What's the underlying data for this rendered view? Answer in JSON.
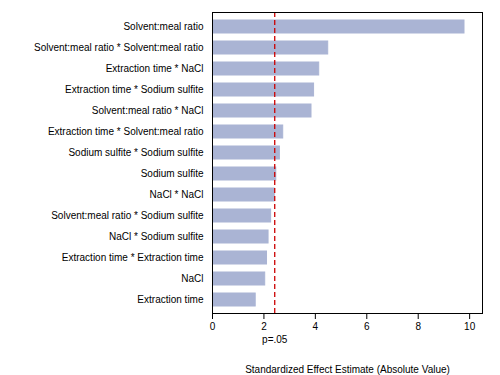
{
  "chart_data": {
    "type": "bar",
    "orientation": "horizontal",
    "categories": [
      "Solvent:meal ratio",
      "Solvent:meal ratio * Solvent:meal ratio",
      "Extraction time * NaCl",
      "Extraction time * Sodium sulfite",
      "Solvent:meal ratio * NaCl",
      "Extraction time * Solvent:meal ratio",
      "Sodium sulfite * Sodium sulfite",
      "Sodium sulfite",
      "NaCl * NaCl",
      "Solvent:meal ratio * Sodium sulfite",
      "NaCl * Sodium sulfite",
      "Extraction time * Extraction time",
      "NaCl",
      "Extraction time"
    ],
    "values": [
      9.8,
      4.5,
      4.15,
      3.95,
      3.85,
      2.75,
      2.62,
      2.48,
      2.42,
      2.28,
      2.18,
      2.12,
      2.05,
      1.68
    ],
    "color": "#aab4d4",
    "xlabel": "Standardized Effect Estimate (Absolute Value)",
    "xlim": [
      0,
      10.5
    ],
    "xticks": [
      0,
      2,
      4,
      6,
      8,
      10
    ],
    "grid": false,
    "annotations": [
      {
        "text": "p=.05",
        "x": 2.42,
        "color": "#cc0000",
        "line_style": "dashed"
      }
    ]
  }
}
